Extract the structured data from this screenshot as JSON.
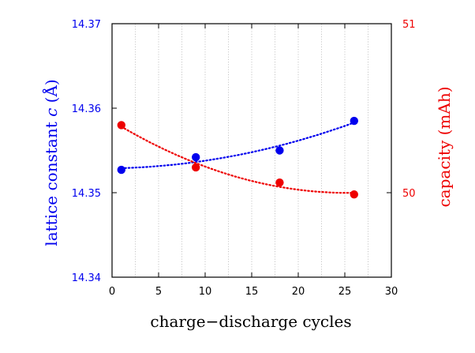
{
  "chart_data": {
    "type": "scatter",
    "xlabel": "charge−discharge cycles",
    "ylabel_left": {
      "prefix": "lattice constant ",
      "symbol": "c",
      "suffix": " (Å)"
    },
    "ylabel_right": "capacity (mAh)",
    "xlim": [
      0,
      30
    ],
    "xticks": [
      "0",
      "5",
      "10",
      "15",
      "20",
      "25",
      "30"
    ],
    "ylim_left": [
      14.34,
      14.37
    ],
    "yticks_left": [
      "14.34",
      "14.35",
      "14.36",
      "14.37"
    ],
    "ylim_right": [
      49.5,
      51
    ],
    "yticks_right": [
      "50",
      "51"
    ],
    "grid": "vertical dotted",
    "series": [
      {
        "axis": "left",
        "color": "#0000ee",
        "x": [
          1,
          9,
          18,
          26
        ],
        "y": [
          14.3527,
          14.3542,
          14.355,
          14.3585
        ],
        "fit": "dotted"
      },
      {
        "axis": "right",
        "color": "#ee0000",
        "x": [
          1,
          9,
          18,
          26
        ],
        "y": [
          50.4,
          50.15,
          50.06,
          49.99
        ],
        "fit": "dotted"
      }
    ]
  }
}
